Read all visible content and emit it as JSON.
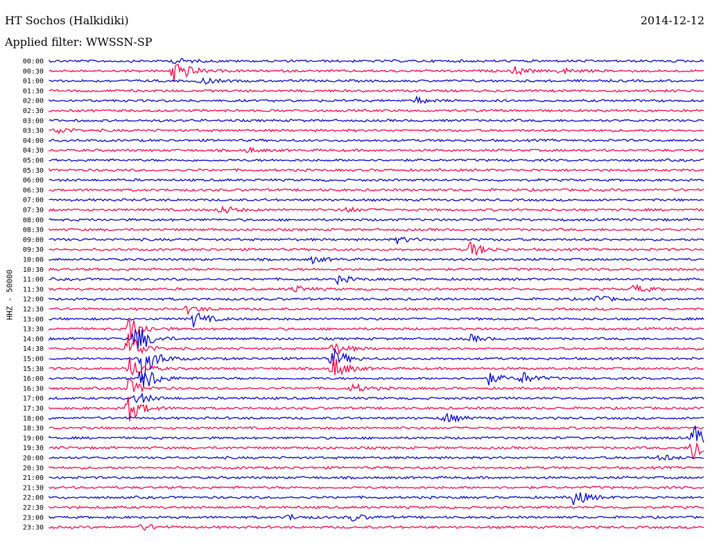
{
  "header": {
    "station": "HT Sochos (Halkidiki)",
    "date": "2014-12-12",
    "filter": "Applied filter: WWSSN-SP"
  },
  "chart_data": {
    "type": "line",
    "title": "HT Sochos (Halkidiki)",
    "ylabel": "HHZ - 50000",
    "xlabel": "",
    "grid": false,
    "trace_colors": [
      "#0000cc",
      "#ff0044"
    ],
    "row_labels": [
      "00:00",
      "00:30",
      "01:00",
      "01:30",
      "02:00",
      "02:30",
      "03:00",
      "03:30",
      "04:00",
      "04:30",
      "05:00",
      "05:30",
      "06:00",
      "06:30",
      "07:00",
      "07:30",
      "08:00",
      "08:30",
      "09:00",
      "09:30",
      "10:00",
      "10:30",
      "11:00",
      "11:30",
      "12:00",
      "12:30",
      "13:00",
      "13:30",
      "14:00",
      "14:30",
      "15:00",
      "15:30",
      "16:00",
      "16:30",
      "17:00",
      "17:30",
      "18:00",
      "18:30",
      "19:00",
      "19:30",
      "20:00",
      "20:30",
      "21:00",
      "21:30",
      "22:00",
      "22:30",
      "23:00",
      "23:30"
    ],
    "events": [
      {
        "row": 0,
        "x": 0.19,
        "amp": 5
      },
      {
        "row": 1,
        "x": 0.19,
        "amp": 24
      },
      {
        "row": 1,
        "x": 0.71,
        "amp": 6
      },
      {
        "row": 1,
        "x": 0.78,
        "amp": 5
      },
      {
        "row": 2,
        "x": 0.23,
        "amp": 6
      },
      {
        "row": 4,
        "x": 0.56,
        "amp": 5
      },
      {
        "row": 7,
        "x": 0.01,
        "amp": 6
      },
      {
        "row": 9,
        "x": 0.3,
        "amp": 4
      },
      {
        "row": 15,
        "x": 0.26,
        "amp": 8
      },
      {
        "row": 15,
        "x": 0.45,
        "amp": 5
      },
      {
        "row": 18,
        "x": 0.53,
        "amp": 5
      },
      {
        "row": 19,
        "x": 0.64,
        "amp": 14
      },
      {
        "row": 20,
        "x": 0.4,
        "amp": 5
      },
      {
        "row": 22,
        "x": 0.44,
        "amp": 6
      },
      {
        "row": 23,
        "x": 0.37,
        "amp": 6
      },
      {
        "row": 23,
        "x": 0.89,
        "amp": 7
      },
      {
        "row": 24,
        "x": 0.83,
        "amp": 7
      },
      {
        "row": 25,
        "x": 0.21,
        "amp": 7
      },
      {
        "row": 26,
        "x": 0.22,
        "amp": 12
      },
      {
        "row": 27,
        "x": 0.12,
        "amp": 22
      },
      {
        "row": 28,
        "x": 0.13,
        "amp": 30
      },
      {
        "row": 28,
        "x": 0.64,
        "amp": 6
      },
      {
        "row": 29,
        "x": 0.12,
        "amp": 26
      },
      {
        "row": 29,
        "x": 0.43,
        "amp": 12
      },
      {
        "row": 30,
        "x": 0.14,
        "amp": 34
      },
      {
        "row": 30,
        "x": 0.43,
        "amp": 18
      },
      {
        "row": 31,
        "x": 0.12,
        "amp": 20
      },
      {
        "row": 31,
        "x": 0.43,
        "amp": 22
      },
      {
        "row": 32,
        "x": 0.14,
        "amp": 26
      },
      {
        "row": 32,
        "x": 0.67,
        "amp": 9
      },
      {
        "row": 32,
        "x": 0.72,
        "amp": 10
      },
      {
        "row": 33,
        "x": 0.12,
        "amp": 14
      },
      {
        "row": 33,
        "x": 0.46,
        "amp": 8
      },
      {
        "row": 34,
        "x": 0.13,
        "amp": 12
      },
      {
        "row": 35,
        "x": 0.12,
        "amp": 22
      },
      {
        "row": 36,
        "x": 0.6,
        "amp": 10
      },
      {
        "row": 38,
        "x": 0.98,
        "amp": 22
      },
      {
        "row": 39,
        "x": 0.98,
        "amp": 26
      },
      {
        "row": 40,
        "x": 0.93,
        "amp": 6
      },
      {
        "row": 44,
        "x": 0.8,
        "amp": 14
      },
      {
        "row": 46,
        "x": 0.36,
        "amp": 5
      },
      {
        "row": 46,
        "x": 0.46,
        "amp": 6
      },
      {
        "row": 47,
        "x": 0.14,
        "amp": 6
      }
    ]
  }
}
